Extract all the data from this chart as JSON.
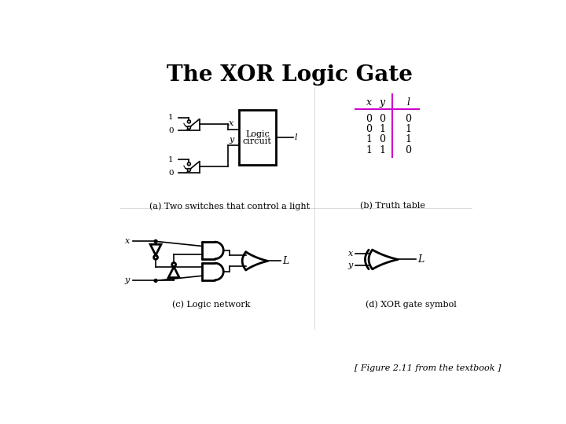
{
  "title": "The XOR Logic Gate",
  "title_fontsize": 20,
  "title_fontweight": "bold",
  "bg_color": "#ffffff",
  "caption_a": "(a) Two switches that control a light",
  "caption_b": "(b) Truth table",
  "caption_c": "(c) Logic network",
  "caption_d": "(d) XOR gate symbol",
  "footer": "[ Figure 2.11 from the textbook ]",
  "truth_table": {
    "headers": [
      "x",
      "y",
      "l"
    ],
    "rows": [
      [
        0,
        0,
        0
      ],
      [
        0,
        1,
        1
      ],
      [
        1,
        0,
        1
      ],
      [
        1,
        1,
        0
      ]
    ],
    "line_color": "#cc00cc"
  },
  "line_color": "#000000",
  "text_color": "#000000",
  "lw_gate": 2.0,
  "lw_wire": 1.2
}
